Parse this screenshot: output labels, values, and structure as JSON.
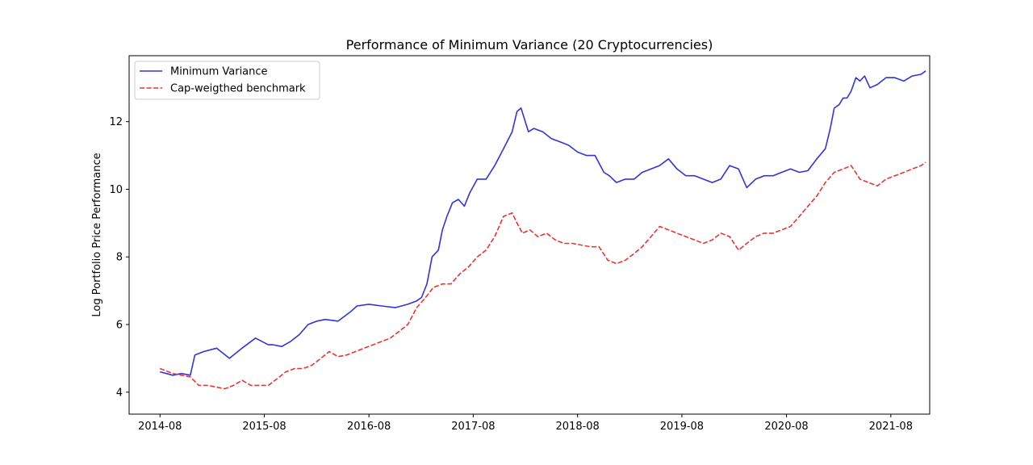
{
  "chart_data": {
    "type": "line",
    "title": "Performance of Minimum Variance (20 Cryptocurrencies)",
    "xlabel": "",
    "ylabel": "Log Portfolio Price Performance",
    "x_tick_labels": [
      "2014-08",
      "2015-08",
      "2016-08",
      "2017-08",
      "2018-08",
      "2019-08",
      "2020-08",
      "2021-08"
    ],
    "y_ticks": [
      4,
      6,
      8,
      10,
      12
    ],
    "xlim": [
      "2014-04-15",
      "2021-12-15"
    ],
    "ylim": [
      3.35,
      13.95
    ],
    "grid": false,
    "legend_position": "top-left",
    "series": [
      {
        "name": "Minimum Variance",
        "color": "#3333dd",
        "style": "solid",
        "x": [
          "2014-08-01",
          "2014-09-15",
          "2014-10-15",
          "2014-11-15",
          "2014-12-01",
          "2015-01-01",
          "2015-02-15",
          "2015-04-01",
          "2015-05-15",
          "2015-07-01",
          "2015-08-15",
          "2015-09-01",
          "2015-10-01",
          "2015-11-01",
          "2015-12-01",
          "2016-01-01",
          "2016-02-01",
          "2016-03-01",
          "2016-04-15",
          "2016-06-01",
          "2016-06-20",
          "2016-08-01",
          "2016-09-15",
          "2016-11-01",
          "2016-12-15",
          "2017-01-15",
          "2017-02-01",
          "2017-02-20",
          "2017-03-10",
          "2017-04-01",
          "2017-04-15",
          "2017-05-01",
          "2017-05-20",
          "2017-06-10",
          "2017-07-01",
          "2017-07-20",
          "2017-08-15",
          "2017-09-15",
          "2017-10-15",
          "2017-11-15",
          "2017-12-15",
          "2018-01-01",
          "2018-01-15",
          "2018-02-10",
          "2018-03-01",
          "2018-04-01",
          "2018-05-01",
          "2018-06-01",
          "2018-07-01",
          "2018-08-01",
          "2018-09-01",
          "2018-10-01",
          "2018-11-01",
          "2018-11-20",
          "2018-12-15",
          "2019-01-15",
          "2019-02-15",
          "2019-03-15",
          "2019-04-15",
          "2019-05-15",
          "2019-06-15",
          "2019-07-15",
          "2019-08-15",
          "2019-09-15",
          "2019-10-15",
          "2019-11-15",
          "2019-12-15",
          "2020-01-15",
          "2020-02-15",
          "2020-03-15",
          "2020-04-15",
          "2020-05-15",
          "2020-06-15",
          "2020-07-15",
          "2020-08-15",
          "2020-09-15",
          "2020-10-15",
          "2020-11-15",
          "2020-12-15",
          "2021-01-01",
          "2021-01-15",
          "2021-02-01",
          "2021-02-15",
          "2021-03-01",
          "2021-03-15",
          "2021-04-01",
          "2021-04-15",
          "2021-05-01",
          "2021-05-20",
          "2021-06-15",
          "2021-07-15",
          "2021-08-15",
          "2021-09-15",
          "2021-10-15",
          "2021-11-15",
          "2021-12-01"
        ],
        "y": [
          4.6,
          4.5,
          4.55,
          4.5,
          5.1,
          5.2,
          5.3,
          5.0,
          5.3,
          5.6,
          5.4,
          5.4,
          5.35,
          5.5,
          5.7,
          6.0,
          6.1,
          6.15,
          6.1,
          6.4,
          6.55,
          6.6,
          6.55,
          6.5,
          6.6,
          6.7,
          6.8,
          7.2,
          8.0,
          8.2,
          8.8,
          9.2,
          9.6,
          9.7,
          9.5,
          9.9,
          10.3,
          10.3,
          10.7,
          11.2,
          11.7,
          12.3,
          12.4,
          11.7,
          11.8,
          11.7,
          11.5,
          11.4,
          11.3,
          11.1,
          11.0,
          11.0,
          10.5,
          10.4,
          10.2,
          10.3,
          10.3,
          10.5,
          10.6,
          10.7,
          10.9,
          10.6,
          10.4,
          10.4,
          10.3,
          10.2,
          10.3,
          10.7,
          10.6,
          10.05,
          10.3,
          10.4,
          10.4,
          10.5,
          10.6,
          10.5,
          10.55,
          10.9,
          11.2,
          11.8,
          12.4,
          12.5,
          12.7,
          12.7,
          12.9,
          13.3,
          13.2,
          13.35,
          13.0,
          13.1,
          13.3,
          13.3,
          13.2,
          13.35,
          13.4,
          13.5
        ]
      },
      {
        "name": "Cap-weigthed benchmark",
        "color": "#ee3333",
        "style": "dashed",
        "x": [
          "2014-08-01",
          "2014-09-15",
          "2014-10-15",
          "2014-11-15",
          "2014-12-15",
          "2015-01-15",
          "2015-02-15",
          "2015-03-15",
          "2015-04-15",
          "2015-05-15",
          "2015-06-15",
          "2015-07-15",
          "2015-08-15",
          "2015-09-15",
          "2015-10-15",
          "2015-11-15",
          "2015-12-15",
          "2016-01-15",
          "2016-02-15",
          "2016-03-15",
          "2016-04-15",
          "2016-05-15",
          "2016-06-15",
          "2016-07-15",
          "2016-08-15",
          "2016-09-15",
          "2016-10-15",
          "2016-11-15",
          "2016-12-15",
          "2017-01-15",
          "2017-02-15",
          "2017-03-15",
          "2017-04-15",
          "2017-05-15",
          "2017-06-15",
          "2017-07-15",
          "2017-08-15",
          "2017-09-15",
          "2017-10-15",
          "2017-11-15",
          "2017-12-15",
          "2018-01-01",
          "2018-01-20",
          "2018-02-15",
          "2018-03-15",
          "2018-04-15",
          "2018-05-15",
          "2018-06-15",
          "2018-07-15",
          "2018-08-15",
          "2018-09-15",
          "2018-10-15",
          "2018-11-15",
          "2018-12-15",
          "2019-01-15",
          "2019-02-15",
          "2019-03-15",
          "2019-04-15",
          "2019-05-15",
          "2019-06-15",
          "2019-07-15",
          "2019-08-15",
          "2019-09-15",
          "2019-10-15",
          "2019-11-15",
          "2019-12-15",
          "2020-01-15",
          "2020-02-15",
          "2020-03-15",
          "2020-04-15",
          "2020-05-15",
          "2020-06-15",
          "2020-07-15",
          "2020-08-15",
          "2020-09-15",
          "2020-10-15",
          "2020-11-15",
          "2020-12-15",
          "2021-01-15",
          "2021-02-15",
          "2021-03-15",
          "2021-04-15",
          "2021-05-15",
          "2021-06-15",
          "2021-07-15",
          "2021-08-15",
          "2021-09-15",
          "2021-10-15",
          "2021-11-15",
          "2021-12-01"
        ],
        "y": [
          4.7,
          4.55,
          4.5,
          4.45,
          4.2,
          4.2,
          4.15,
          4.1,
          4.2,
          4.35,
          4.2,
          4.2,
          4.2,
          4.4,
          4.6,
          4.7,
          4.7,
          4.8,
          5.0,
          5.2,
          5.05,
          5.1,
          5.2,
          5.3,
          5.4,
          5.5,
          5.6,
          5.8,
          6.0,
          6.5,
          6.8,
          7.1,
          7.2,
          7.2,
          7.5,
          7.7,
          8.0,
          8.2,
          8.6,
          9.2,
          9.3,
          9.0,
          8.7,
          8.8,
          8.6,
          8.7,
          8.5,
          8.4,
          8.4,
          8.35,
          8.3,
          8.3,
          7.9,
          7.8,
          7.9,
          8.1,
          8.3,
          8.6,
          8.9,
          8.8,
          8.7,
          8.6,
          8.5,
          8.4,
          8.5,
          8.7,
          8.6,
          8.2,
          8.4,
          8.6,
          8.7,
          8.7,
          8.8,
          8.9,
          9.2,
          9.5,
          9.8,
          10.2,
          10.5,
          10.6,
          10.7,
          10.3,
          10.2,
          10.1,
          10.3,
          10.4,
          10.5,
          10.6,
          10.7,
          10.8
        ]
      }
    ]
  }
}
